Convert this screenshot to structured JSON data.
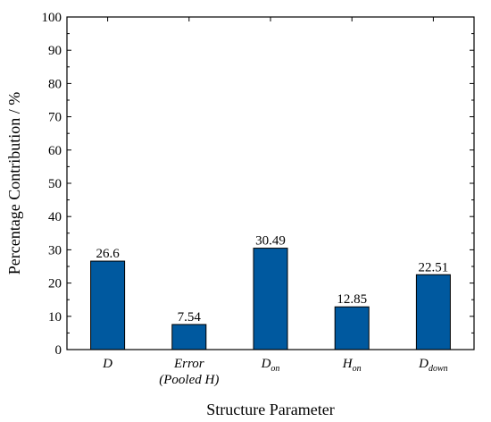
{
  "chart_data": {
    "type": "bar",
    "categories": [
      {
        "main": "D",
        "sub": "",
        "line2": ""
      },
      {
        "main": "Error",
        "sub": "",
        "line2": "(Pooled H)"
      },
      {
        "main": "D",
        "sub": "on",
        "line2": ""
      },
      {
        "main": "H",
        "sub": "on",
        "line2": ""
      },
      {
        "main": "D",
        "sub": "down",
        "line2": ""
      }
    ],
    "values": [
      26.6,
      7.54,
      30.49,
      12.85,
      22.51
    ],
    "value_labels": [
      "26.6",
      "7.54",
      "30.49",
      "12.85",
      "22.51"
    ],
    "xlabel": "Structure Parameter",
    "ylabel": "Percentage Contribution / %",
    "ylim": [
      0,
      100
    ],
    "yticks": [
      0,
      10,
      20,
      30,
      40,
      50,
      60,
      70,
      80,
      90,
      100
    ],
    "bar_color": "#00599f",
    "grid": false,
    "legend": "none"
  }
}
